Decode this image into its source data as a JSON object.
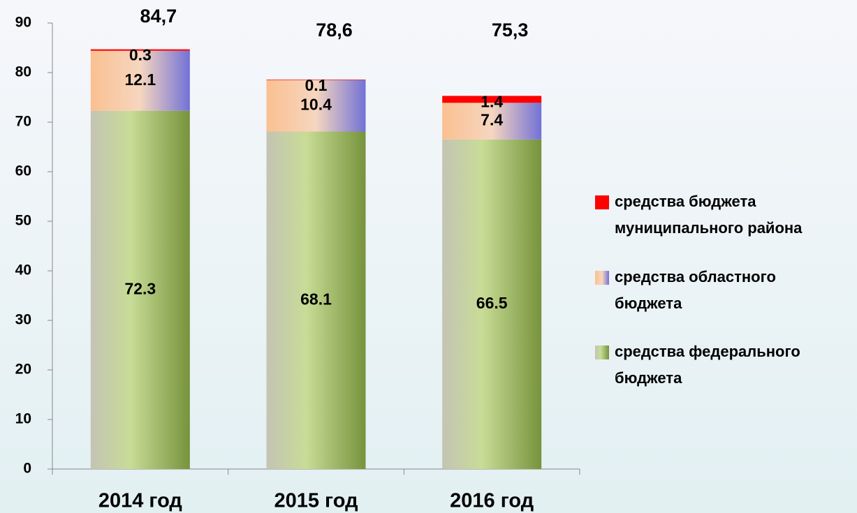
{
  "chart_data": {
    "type": "stacked_bar",
    "categories": [
      "2014 год",
      "2015 год",
      "2016 год"
    ],
    "series": [
      {
        "name": "средства федерального бюджета",
        "color": "#77933c",
        "values": [
          72.3,
          68.1,
          66.5
        ]
      },
      {
        "name": "средства областного бюджета",
        "color": "#fac090",
        "values": [
          12.1,
          10.4,
          7.4
        ]
      },
      {
        "name": "средства бюджета муниципального района",
        "color": "#ff0000",
        "values": [
          0.3,
          0.1,
          1.4
        ]
      }
    ],
    "total_labels": [
      "84,7",
      "78,6",
      "75,3"
    ],
    "ylim": [
      0,
      90
    ],
    "yticks": [
      0,
      10,
      20,
      30,
      40,
      50,
      60,
      70,
      80,
      90
    ],
    "legend": "right"
  }
}
